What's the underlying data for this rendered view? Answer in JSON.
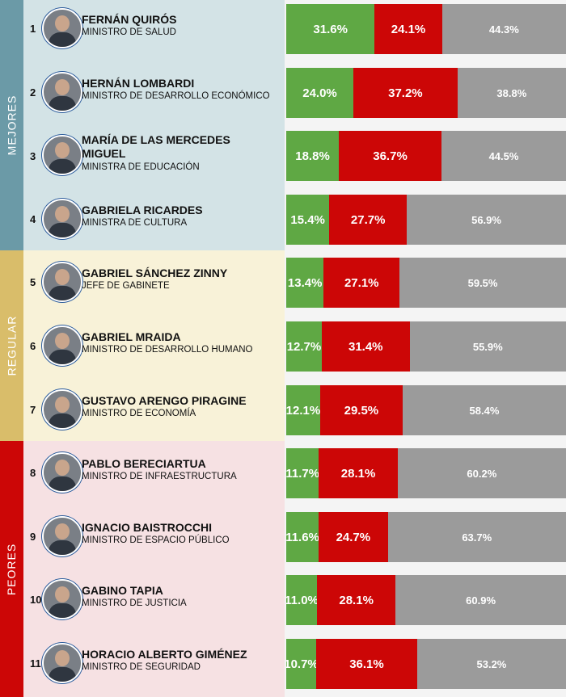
{
  "colors": {
    "positive": "#5fa844",
    "negative": "#cc0606",
    "ns_nc": "#9b9b9b",
    "group_mejores": "#6b9aa7",
    "group_regular": "#d9bd6a",
    "group_peores": "#cc0606"
  },
  "groups": [
    {
      "label": "MEJORES",
      "first_rank": 1,
      "last_rank": 4
    },
    {
      "label": "REGULAR",
      "first_rank": 5,
      "last_rank": 7
    },
    {
      "label": "PEORES",
      "first_rank": 8,
      "last_rank": 11
    }
  ],
  "chart_data": {
    "type": "bar",
    "stacked": true,
    "orientation": "horizontal",
    "categories": [
      "FERNÁN QUIRÓS",
      "HERNÁN LOMBARDI",
      "MARÍA DE LAS MERCEDES MIGUEL",
      "GABRIELA RICARDES",
      "GABRIEL SÁNCHEZ ZINNY",
      "GABRIEL MRAIDA",
      "GUSTAVO ARENGO PIRAGINE",
      "PABLO BERECIARTUA",
      "IGNACIO BAISTROCCHI",
      "GABINO TAPIA",
      "HORACIO ALBERTO GIMÉNEZ"
    ],
    "series": [
      {
        "values": [
          31.6,
          24.0,
          18.8,
          15.4,
          13.4,
          12.7,
          12.1,
          11.7,
          11.6,
          11.0,
          10.7
        ],
        "labels": [
          "31.6%",
          "24.0%",
          "18.8%",
          "15.4%",
          "13.4%",
          "12.7%",
          "12.1%",
          "11.7%",
          "11.6%",
          "11.0%",
          "10.7%"
        ]
      },
      {
        "values": [
          24.1,
          37.2,
          36.7,
          27.7,
          27.1,
          31.4,
          29.5,
          28.1,
          24.7,
          28.1,
          36.1
        ],
        "labels": [
          "24.1%",
          "37.2%",
          "36.7%",
          "27.7%",
          "27.1%",
          "31.4%",
          "29.5%",
          "28.1%",
          "24.7%",
          "28.1%",
          "36.1%"
        ]
      },
      {
        "values": [
          44.3,
          38.8,
          44.5,
          56.9,
          59.5,
          55.9,
          58.4,
          60.2,
          63.7,
          60.9,
          53.2
        ],
        "labels": [
          "44.3%",
          "38.8%",
          "44.5%",
          "56.9%",
          "59.5%",
          "55.9%",
          "58.4%",
          "60.2%",
          "63.7%",
          "60.9%",
          "53.2%"
        ]
      }
    ],
    "rows": [
      {
        "rank": "1",
        "name": "FERNÁN QUIRÓS",
        "role": "MINISTRO DE SALUD"
      },
      {
        "rank": "2",
        "name": "HERNÁN LOMBARDI",
        "role": "MINISTRO DE DESARROLLO ECONÓMICO"
      },
      {
        "rank": "3",
        "name": "MARÍA DE LAS MERCEDES MIGUEL",
        "role": "MINISTRA DE EDUCACIÓN"
      },
      {
        "rank": "4",
        "name": "GABRIELA RICARDES",
        "role": "MINISTRA DE CULTURA"
      },
      {
        "rank": "5",
        "name": "GABRIEL SÁNCHEZ ZINNY",
        "role": "JEFE DE GABINETE"
      },
      {
        "rank": "6",
        "name": "GABRIEL MRAIDA",
        "role": "MINISTRO DE DESARROLLO HUMANO"
      },
      {
        "rank": "7",
        "name": "GUSTAVO ARENGO PIRAGINE",
        "role": "MINISTRO DE ECONOMÍA"
      },
      {
        "rank": "8",
        "name": "PABLO BERECIARTUA",
        "role": "MINISTRO DE INFRAESTRUCTURA"
      },
      {
        "rank": "9",
        "name": "IGNACIO BAISTROCCHI",
        "role": "MINISTRO DE ESPACIO PÚBLICO"
      },
      {
        "rank": "10",
        "name": "GABINO TAPIA",
        "role": "MINISTRO DE JUSTICIA"
      },
      {
        "rank": "11",
        "name": "HORACIO ALBERTO GIMÉNEZ",
        "role": "MINISTRO DE SEGURIDAD"
      }
    ],
    "xlim": [
      0,
      100
    ],
    "grid": false,
    "legend": "none"
  }
}
